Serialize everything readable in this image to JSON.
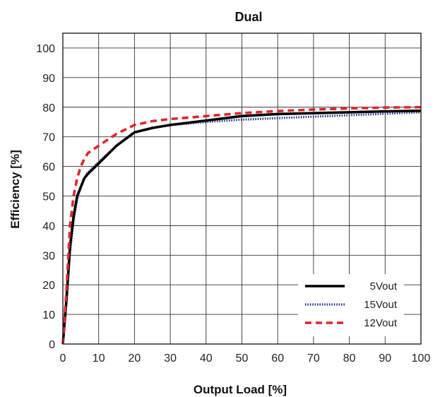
{
  "chart_data": {
    "type": "line",
    "title": "Dual",
    "xlabel": "Output Load [%]",
    "ylabel": "Efficiency [%]",
    "xlim": [
      0,
      100
    ],
    "ylim": [
      0,
      105
    ],
    "xticks": [
      0,
      10,
      20,
      30,
      40,
      50,
      60,
      70,
      80,
      90,
      100
    ],
    "yticks": [
      0,
      10,
      20,
      30,
      40,
      50,
      60,
      70,
      80,
      90,
      100
    ],
    "grid": true,
    "legend_position": "bottom-right",
    "series": [
      {
        "name": "5Vout",
        "color": "#000000",
        "style": "solid",
        "points": [
          [
            0,
            0
          ],
          [
            1,
            15
          ],
          [
            2,
            33
          ],
          [
            3,
            43
          ],
          [
            4,
            50
          ],
          [
            5,
            53
          ],
          [
            6,
            56
          ],
          [
            7,
            57.5
          ],
          [
            10,
            61
          ],
          [
            15,
            67
          ],
          [
            20,
            71.5
          ],
          [
            25,
            73
          ],
          [
            30,
            74
          ],
          [
            40,
            75.5
          ],
          [
            50,
            77
          ],
          [
            60,
            77.7
          ],
          [
            70,
            78
          ],
          [
            80,
            78.3
          ],
          [
            90,
            78.6
          ],
          [
            100,
            78.8
          ]
        ]
      },
      {
        "name": "15Vout",
        "color": "#2b3990",
        "style": "dotted",
        "points": [
          [
            0,
            0
          ],
          [
            1,
            14
          ],
          [
            2,
            31
          ],
          [
            3,
            42
          ],
          [
            4,
            49
          ],
          [
            5,
            53
          ],
          [
            6,
            56
          ],
          [
            7,
            58
          ],
          [
            10,
            61.5
          ],
          [
            15,
            67
          ],
          [
            20,
            71.5
          ],
          [
            25,
            73
          ],
          [
            30,
            74
          ],
          [
            40,
            75
          ],
          [
            50,
            75.8
          ],
          [
            60,
            76.3
          ],
          [
            70,
            76.8
          ],
          [
            80,
            77.3
          ],
          [
            90,
            77.8
          ],
          [
            100,
            78.3
          ]
        ]
      },
      {
        "name": "12Vout",
        "color": "#e0242b",
        "style": "dashed",
        "points": [
          [
            0,
            0
          ],
          [
            1,
            18
          ],
          [
            2,
            40
          ],
          [
            3,
            50
          ],
          [
            4,
            56
          ],
          [
            5,
            60
          ],
          [
            6,
            62.5
          ],
          [
            7,
            64.5
          ],
          [
            10,
            67
          ],
          [
            15,
            71
          ],
          [
            20,
            74
          ],
          [
            25,
            75.3
          ],
          [
            30,
            76
          ],
          [
            40,
            77
          ],
          [
            50,
            78
          ],
          [
            60,
            78.7
          ],
          [
            70,
            79.2
          ],
          [
            80,
            79.6
          ],
          [
            90,
            79.9
          ],
          [
            100,
            80
          ]
        ]
      }
    ]
  }
}
